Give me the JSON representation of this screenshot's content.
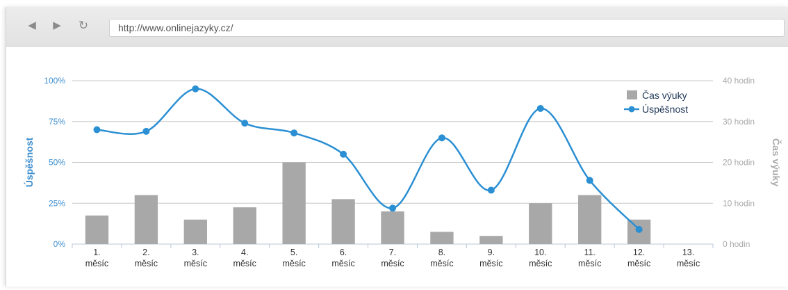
{
  "browser": {
    "url": "http://www.onlinejazyky.cz/",
    "back_icon": "back-arrow-icon",
    "forward_icon": "forward-arrow-icon",
    "reload_icon": "reload-icon"
  },
  "chart_data": {
    "type": "bar+line",
    "categories": [
      [
        "1.",
        "měsíc"
      ],
      [
        "2.",
        "měsíc"
      ],
      [
        "3.",
        "měsíc"
      ],
      [
        "4.",
        "měsíc"
      ],
      [
        "5.",
        "měsíc"
      ],
      [
        "6.",
        "měsíc"
      ],
      [
        "7.",
        "měsíc"
      ],
      [
        "8.",
        "měsíc"
      ],
      [
        "9.",
        "měsíc"
      ],
      [
        "10.",
        "měsíc"
      ],
      [
        "11.",
        "měsíc"
      ],
      [
        "12.",
        "měsíc"
      ],
      [
        "13.",
        "měsíc"
      ]
    ],
    "series": [
      {
        "name": "Čas výuky",
        "type": "bar",
        "axis": "right",
        "color": "#a8a8a8",
        "values": [
          7,
          12,
          6,
          9,
          20,
          11,
          8,
          3,
          2,
          10,
          12,
          6,
          null
        ]
      },
      {
        "name": "Úspěšnost",
        "type": "line",
        "axis": "left",
        "color": "#2b8fd3",
        "values": [
          70,
          69,
          95,
          74,
          68,
          55,
          22,
          65,
          33,
          83,
          39,
          9,
          null
        ]
      }
    ],
    "y_left": {
      "label": "Úspěšnost",
      "range": [
        0,
        100
      ],
      "ticks": [
        {
          "value": 0,
          "label": "0%"
        },
        {
          "value": 25,
          "label": "25%"
        },
        {
          "value": 50,
          "label": "50%"
        },
        {
          "value": 75,
          "label": "75%"
        },
        {
          "value": 100,
          "label": "100%"
        }
      ]
    },
    "y_right": {
      "label": "Čas výuky",
      "range": [
        0,
        40
      ],
      "ticks": [
        {
          "value": 0,
          "label": "0 hodin"
        },
        {
          "value": 10,
          "label": "10 hodin"
        },
        {
          "value": 20,
          "label": "20 hodin"
        },
        {
          "value": 30,
          "label": "30 hodin"
        },
        {
          "value": 40,
          "label": "40 hodin"
        }
      ]
    },
    "grid": true,
    "legend": "top-right"
  }
}
